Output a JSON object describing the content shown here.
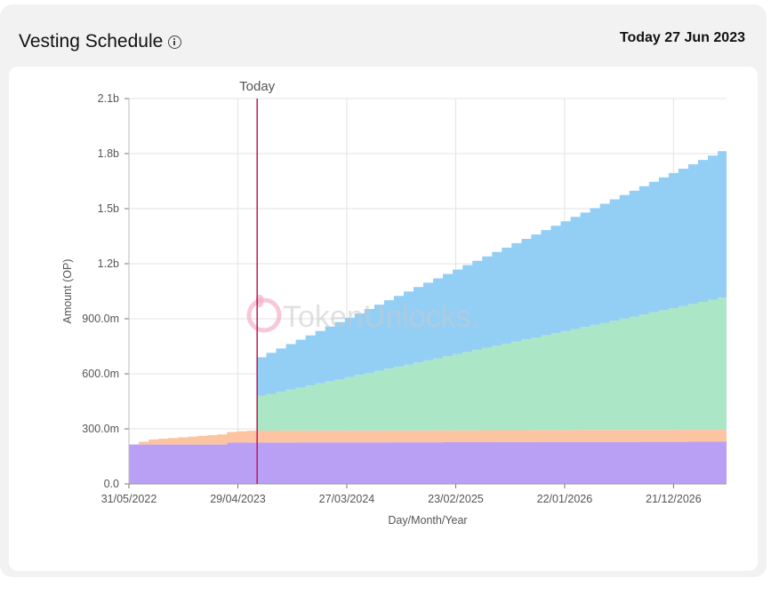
{
  "header": {
    "title": "Vesting Schedule",
    "today_label": "Today 27 Jun 2023"
  },
  "watermark": {
    "text": "TokenUnlocks."
  },
  "chart_data": {
    "type": "area",
    "stacked": true,
    "step": true,
    "xlabel": "Day/Month/Year",
    "ylabel": "Amount (OP)",
    "x_ticks": [
      "31/05/2022",
      "29/04/2023",
      "27/03/2024",
      "23/02/2025",
      "22/01/2026",
      "21/12/2026"
    ],
    "y_ticks": [
      "0.0",
      "300.0m",
      "600.0m",
      "900.0m",
      "1.2b",
      "1.5b",
      "1.8b",
      "2.1b"
    ],
    "ylim": [
      0,
      2100000000
    ],
    "xlim": [
      "2022-05-31",
      "2027-06-01"
    ],
    "today": {
      "label": "Today",
      "date": "2023-06-27",
      "color": "#c2185b"
    },
    "grid": true,
    "series": [
      {
        "color": "#b9a0f5",
        "points": [
          [
            "2022-05-31",
            215000000
          ],
          [
            "2023-03-01",
            215000000
          ],
          [
            "2023-03-01",
            225000000
          ],
          [
            "2027-06-01",
            230000000
          ]
        ]
      },
      {
        "color": "#fdc4a2",
        "points": [
          [
            "2022-05-31",
            0
          ],
          [
            "2022-06-15",
            0
          ],
          [
            "2022-07-10",
            25000000
          ],
          [
            "2023-03-01",
            55000000
          ],
          [
            "2023-06-01",
            65000000
          ],
          [
            "2027-06-01",
            65000000
          ]
        ]
      },
      {
        "color": "#abe6c7",
        "points": [
          [
            "2022-05-31",
            0
          ],
          [
            "2023-05-31",
            0
          ],
          [
            "2023-05-31",
            180000000
          ],
          [
            "2027-06-01",
            730000000
          ]
        ]
      },
      {
        "color": "#93cef5",
        "points": [
          [
            "2022-05-31",
            0
          ],
          [
            "2023-05-31",
            0
          ],
          [
            "2023-05-31",
            200000000
          ],
          [
            "2027-06-01",
            810000000
          ]
        ]
      }
    ]
  }
}
